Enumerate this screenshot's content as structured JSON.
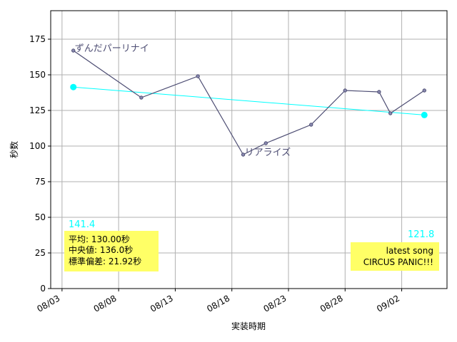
{
  "chart_data": {
    "type": "line",
    "xlabel": "実装時期",
    "ylabel": "秒数",
    "x_ticks": [
      "08/03",
      "08/08",
      "08/13",
      "08/18",
      "08/23",
      "08/28",
      "09/02"
    ],
    "y_ticks": [
      "0",
      "25",
      "50",
      "75",
      "100",
      "125",
      "150",
      "175"
    ],
    "xlim": [
      "08/02",
      "09/06"
    ],
    "ylim": [
      0,
      195
    ],
    "grid": true,
    "series": [
      {
        "x": [
          "08/04",
          "08/10",
          "08/15",
          "08/19",
          "08/21",
          "08/25",
          "08/28",
          "08/31",
          "09/01",
          "09/04"
        ],
        "values": [
          167,
          134,
          149,
          94,
          102,
          115,
          139,
          138,
          123,
          139
        ],
        "color": "#4d4d73"
      }
    ],
    "trend": {
      "x": [
        "08/04",
        "09/04"
      ],
      "values": [
        141.4,
        121.8
      ],
      "color": "#00ffff",
      "start_label": "141.4",
      "end_label": "121.8"
    },
    "annotations": [
      {
        "text": "ずんだパーリナイ",
        "x": "08/04",
        "y": 167
      },
      {
        "text": "リアライズ",
        "x": "08/19",
        "y": 94
      }
    ],
    "stats_box": {
      "lines": [
        "平均: 130.00秒",
        "中央値: 136.0秒",
        "標準偏差:  21.92秒"
      ],
      "position": "bottom-left",
      "background": "#ffff66"
    },
    "latest_box": {
      "lines": [
        "latest song",
        "CIRCUS PANIC!!!"
      ],
      "position": "bottom-right",
      "background": "#ffff66"
    }
  }
}
